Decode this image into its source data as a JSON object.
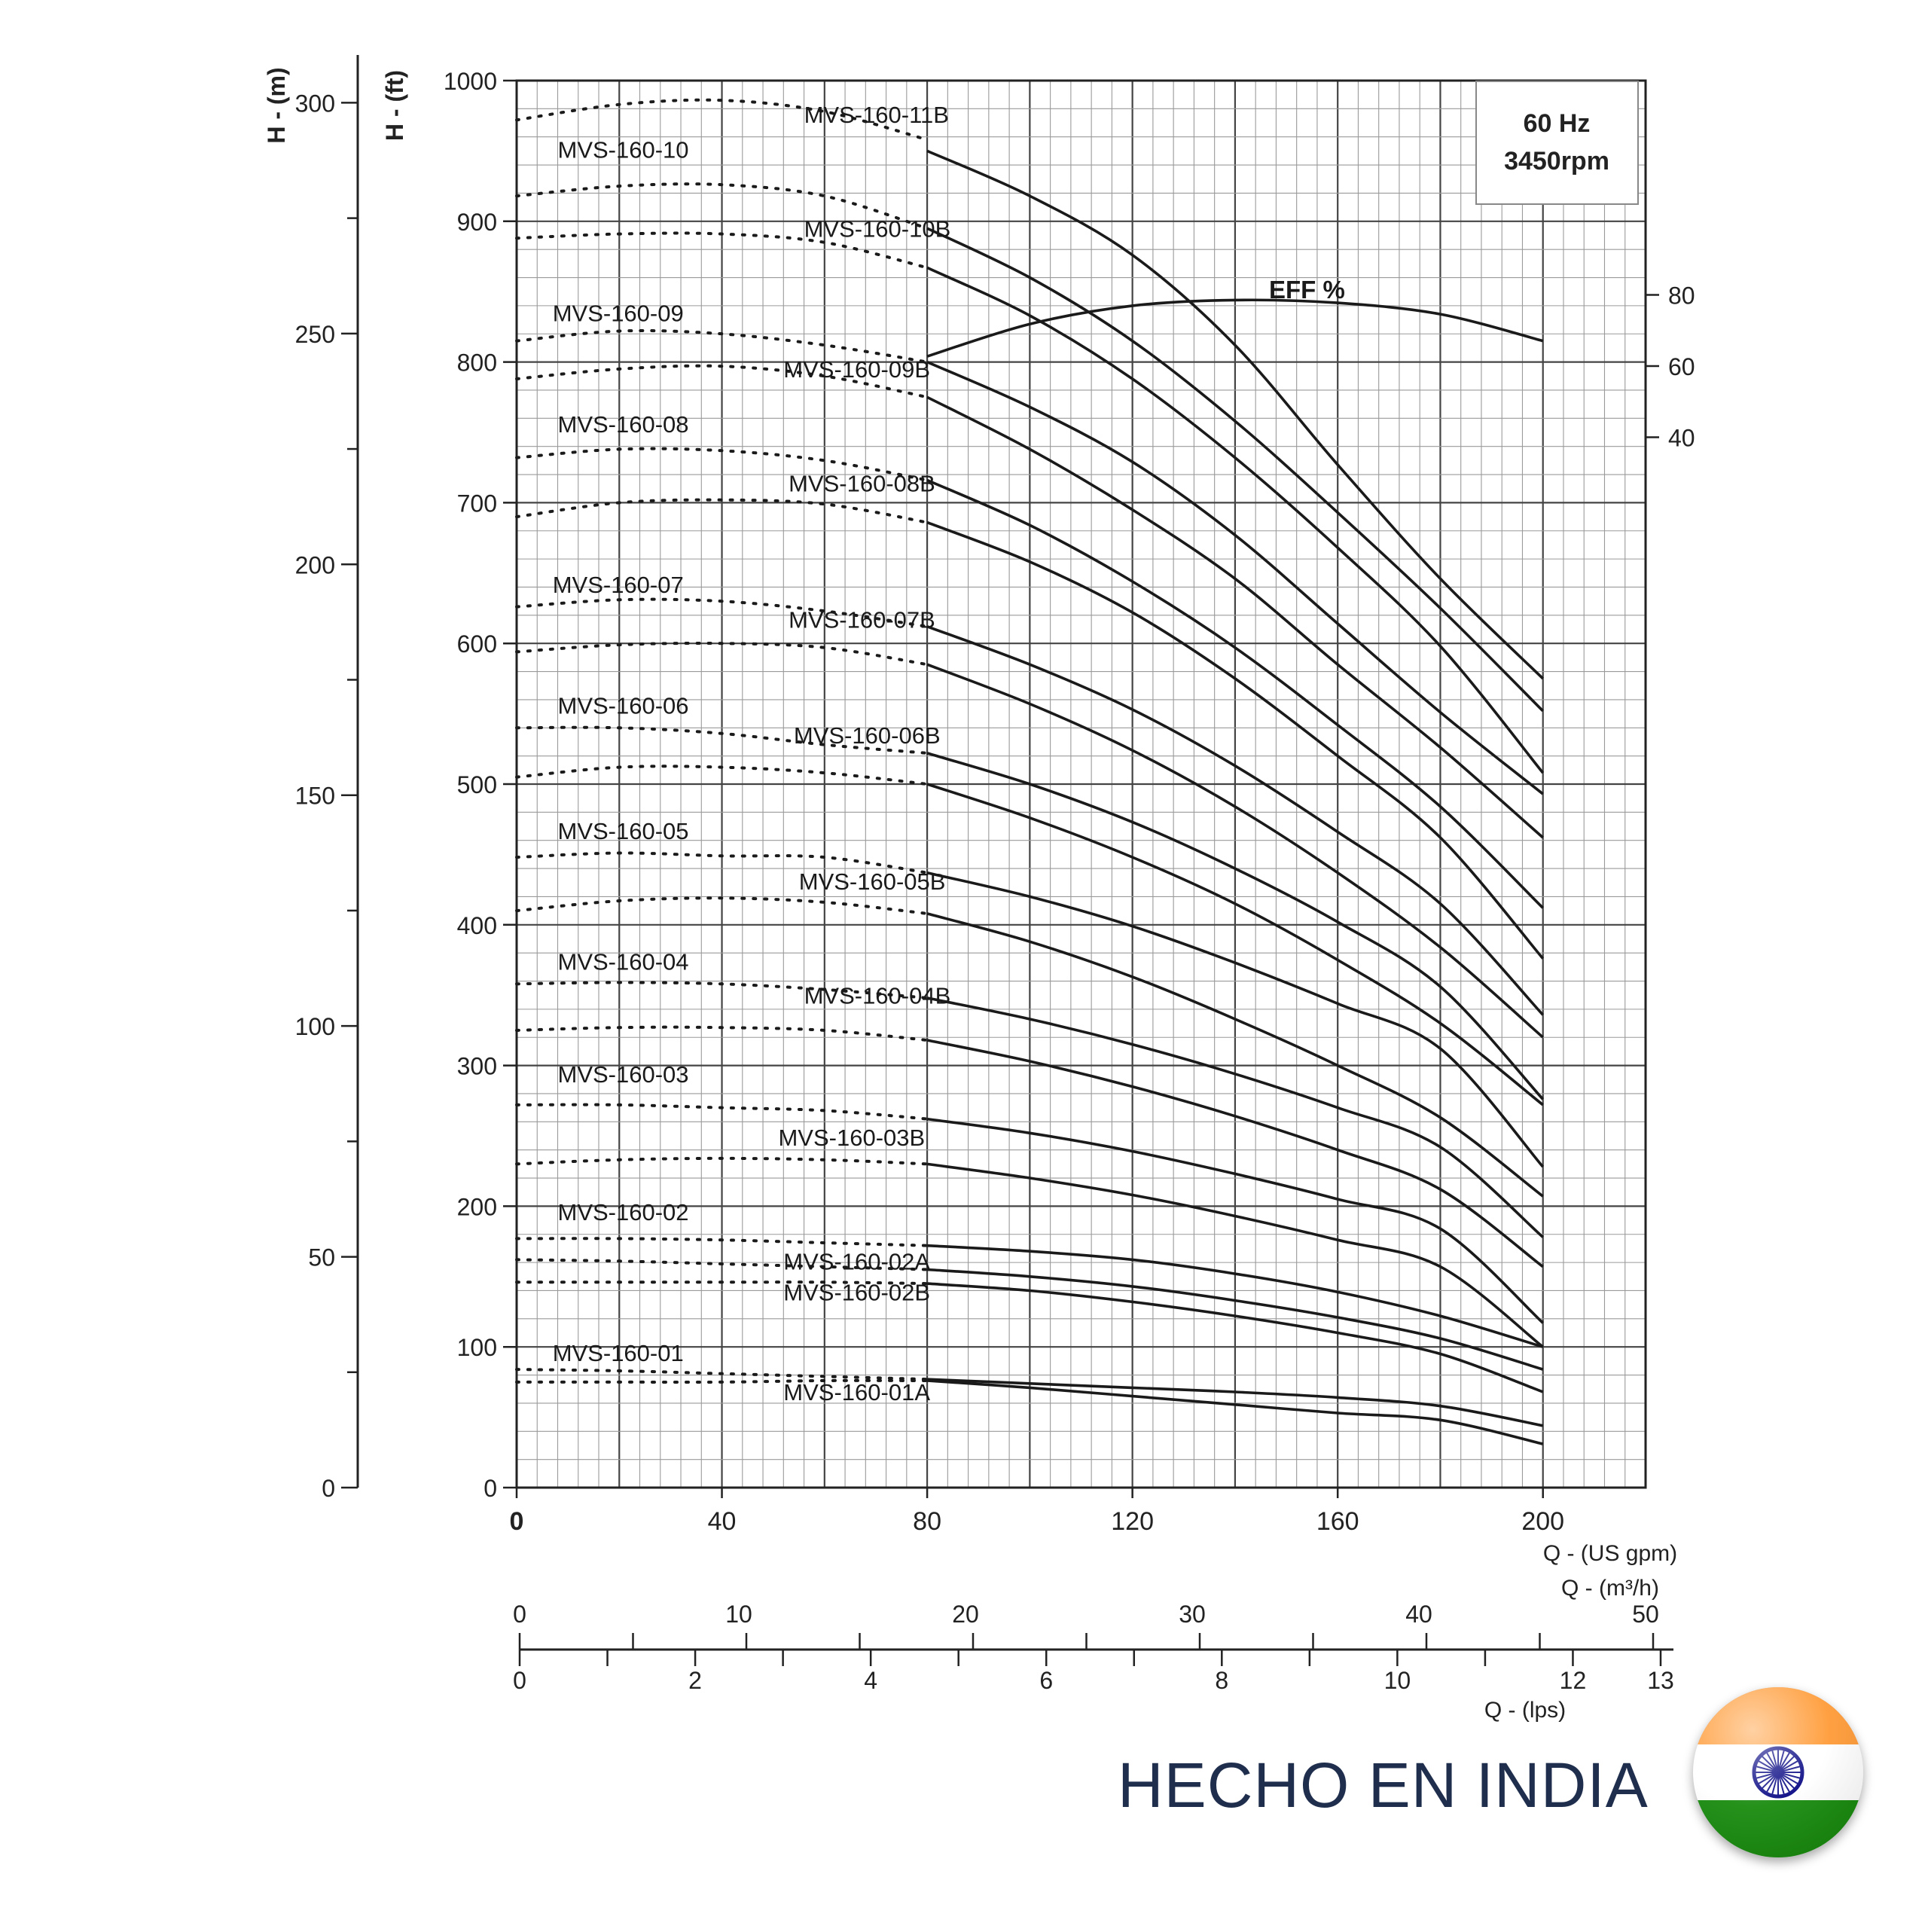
{
  "chart_data": {
    "type": "line",
    "info_box": {
      "line1": "60 Hz",
      "line2": "3450rpm"
    },
    "axes": {
      "x_gpm": {
        "label": "Q - (US gpm)",
        "range": [
          0,
          220
        ],
        "ticks": [
          0,
          40,
          80,
          120,
          160,
          200
        ]
      },
      "x_m3h": {
        "label": "Q - (m³/h)",
        "range": [
          0,
          50
        ],
        "ticks": [
          0,
          10,
          20,
          30,
          40,
          50
        ]
      },
      "x_lps": {
        "label": "Q - (lps)",
        "range": [
          0,
          13
        ],
        "ticks": [
          0,
          2,
          4,
          6,
          8,
          10,
          12,
          13
        ]
      },
      "y_ft": {
        "label": "H - (ft)",
        "range": [
          0,
          1000
        ],
        "ticks": [
          0,
          100,
          200,
          300,
          400,
          500,
          600,
          700,
          800,
          900,
          1000
        ]
      },
      "y_m": {
        "label": "H - (m)",
        "range": [
          0,
          300
        ],
        "ticks": [
          0,
          50,
          100,
          150,
          200,
          250,
          300
        ]
      },
      "eff": {
        "label": "EFF %",
        "ticks": [
          40,
          60,
          80
        ]
      }
    },
    "eff_curve": {
      "name": "EFF %",
      "x": [
        80,
        100,
        120,
        140,
        160,
        180,
        200
      ],
      "y": [
        804,
        827,
        840,
        844,
        842,
        834,
        815
      ]
    },
    "series": [
      {
        "name": "MVS-160-11B",
        "label": "MVS-160-11B",
        "label_pos": [
          56,
          970
        ],
        "dashed": {
          "x": [
            0,
            20,
            40,
            60,
            80
          ],
          "y": [
            972,
            983,
            986,
            978,
            958
          ]
        },
        "solid": {
          "x": [
            80,
            100,
            120,
            140,
            160,
            180,
            200
          ],
          "y": [
            950,
            918,
            876,
            812,
            727,
            646,
            575
          ]
        }
      },
      {
        "name": "MVS-160-10",
        "label": "MVS-160-10",
        "label_pos": [
          8,
          945
        ],
        "dashed": {
          "x": [
            0,
            20,
            40,
            60,
            80
          ],
          "y": [
            918,
            925,
            926,
            918,
            895
          ]
        },
        "solid": {
          "x": [
            80,
            100,
            120,
            140,
            160,
            180,
            200
          ],
          "y": [
            895,
            860,
            815,
            758,
            693,
            625,
            552
          ]
        }
      },
      {
        "name": "MVS-160-10B",
        "label": "MVS-160-10B",
        "label_pos": [
          56,
          889
        ],
        "dashed": {
          "x": [
            0,
            20,
            40,
            60,
            80
          ],
          "y": [
            888,
            891,
            891,
            885,
            867
          ]
        },
        "solid": {
          "x": [
            80,
            100,
            120,
            140,
            160,
            180,
            200
          ],
          "y": [
            867,
            833,
            788,
            732,
            668,
            598,
            508
          ]
        }
      },
      {
        "name": "MVS-160-09",
        "label": "MVS-160-09",
        "label_pos": [
          7,
          829
        ],
        "dashed": {
          "x": [
            0,
            20,
            40,
            60,
            80
          ],
          "y": [
            815,
            822,
            820,
            812,
            800
          ]
        },
        "solid": {
          "x": [
            80,
            100,
            120,
            140,
            160,
            180,
            200
          ],
          "y": [
            800,
            768,
            729,
            677,
            614,
            551,
            493
          ]
        }
      },
      {
        "name": "MVS-160-09B",
        "label": "MVS-160-09B",
        "label_pos": [
          52,
          789
        ],
        "dashed": {
          "x": [
            0,
            20,
            40,
            60,
            80
          ],
          "y": [
            788,
            795,
            797,
            790,
            775
          ]
        },
        "solid": {
          "x": [
            80,
            100,
            120,
            140,
            160,
            180,
            200
          ],
          "y": [
            775,
            738,
            695,
            646,
            585,
            526,
            462
          ]
        }
      },
      {
        "name": "MVS-160-08",
        "label": "MVS-160-08",
        "label_pos": [
          8,
          750
        ],
        "dashed": {
          "x": [
            0,
            20,
            40,
            60,
            80
          ],
          "y": [
            732,
            738,
            737,
            730,
            716
          ]
        },
        "solid": {
          "x": [
            80,
            100,
            120,
            140,
            160,
            180,
            200
          ],
          "y": [
            716,
            684,
            644,
            597,
            542,
            484,
            412
          ]
        }
      },
      {
        "name": "MVS-160-08B",
        "label": "MVS-160-08B",
        "label_pos": [
          53,
          708
        ],
        "dashed": {
          "x": [
            0,
            20,
            40,
            60,
            80
          ],
          "y": [
            690,
            700,
            702,
            699,
            686
          ]
        },
        "solid": {
          "x": [
            80,
            100,
            120,
            140,
            160,
            180,
            200
          ],
          "y": [
            686,
            658,
            622,
            575,
            520,
            462,
            376
          ]
        }
      },
      {
        "name": "MVS-160-07",
        "label": "MVS-160-07",
        "label_pos": [
          7,
          636
        ],
        "dashed": {
          "x": [
            0,
            20,
            40,
            60,
            80
          ],
          "y": [
            626,
            631,
            630,
            623,
            612
          ]
        },
        "solid": {
          "x": [
            80,
            100,
            120,
            140,
            160,
            180,
            200
          ],
          "y": [
            612,
            585,
            553,
            513,
            466,
            415,
            336
          ]
        }
      },
      {
        "name": "MVS-160-07B",
        "label": "MVS-160-07B",
        "label_pos": [
          53,
          611
        ],
        "dashed": {
          "x": [
            0,
            20,
            40,
            60,
            80
          ],
          "y": [
            594,
            599,
            600,
            597,
            585
          ]
        },
        "solid": {
          "x": [
            80,
            100,
            120,
            140,
            160,
            180,
            200
          ],
          "y": [
            585,
            557,
            524,
            484,
            437,
            384,
            320
          ]
        }
      },
      {
        "name": "MVS-160-06",
        "label": "MVS-160-06",
        "label_pos": [
          8,
          550
        ],
        "dashed": {
          "x": [
            0,
            20,
            40,
            60,
            80
          ],
          "y": [
            540,
            540,
            536,
            528,
            522
          ]
        },
        "solid": {
          "x": [
            80,
            100,
            120,
            140,
            160,
            180,
            200
          ],
          "y": [
            522,
            500,
            473,
            440,
            402,
            356,
            276
          ]
        }
      },
      {
        "name": "MVS-160-06B",
        "label": "MVS-160-06B",
        "label_pos": [
          54,
          529
        ],
        "dashed": {
          "x": [
            0,
            20,
            40,
            60,
            80
          ],
          "y": [
            505,
            512,
            512,
            508,
            500
          ]
        },
        "solid": {
          "x": [
            80,
            100,
            120,
            140,
            160,
            180,
            200
          ],
          "y": [
            500,
            476,
            448,
            415,
            375,
            330,
            272
          ]
        }
      },
      {
        "name": "MVS-160-05",
        "label": "MVS-160-05",
        "label_pos": [
          8,
          461
        ],
        "dashed": {
          "x": [
            0,
            20,
            40,
            60,
            80
          ],
          "y": [
            448,
            451,
            449,
            448,
            437
          ]
        },
        "solid": {
          "x": [
            80,
            100,
            120,
            140,
            160,
            180,
            200
          ],
          "y": [
            437,
            420,
            399,
            373,
            344,
            312,
            228
          ]
        }
      },
      {
        "name": "MVS-160-05B",
        "label": "MVS-160-05B",
        "label_pos": [
          55,
          425
        ],
        "dashed": {
          "x": [
            0,
            20,
            40,
            60,
            80
          ],
          "y": [
            410,
            417,
            419,
            416,
            408
          ]
        },
        "solid": {
          "x": [
            80,
            100,
            120,
            140,
            160,
            180,
            200
          ],
          "y": [
            408,
            388,
            363,
            333,
            300,
            263,
            207
          ]
        }
      },
      {
        "name": "MVS-160-04",
        "label": "MVS-160-04",
        "label_pos": [
          8,
          368
        ],
        "dashed": {
          "x": [
            0,
            20,
            40,
            60,
            80
          ],
          "y": [
            358,
            359,
            358,
            354,
            348
          ]
        },
        "solid": {
          "x": [
            80,
            100,
            120,
            140,
            160,
            180,
            200
          ],
          "y": [
            348,
            333,
            315,
            294,
            270,
            242,
            178
          ]
        }
      },
      {
        "name": "MVS-160-04B",
        "label": "MVS-160-04B",
        "label_pos": [
          56,
          344
        ],
        "dashed": {
          "x": [
            0,
            20,
            40,
            60,
            80
          ],
          "y": [
            325,
            327,
            327,
            325,
            318
          ]
        },
        "solid": {
          "x": [
            80,
            100,
            120,
            140,
            160,
            180,
            200
          ],
          "y": [
            318,
            303,
            285,
            264,
            240,
            212,
            157
          ]
        }
      },
      {
        "name": "MVS-160-03",
        "label": "MVS-160-03",
        "label_pos": [
          8,
          288
        ],
        "dashed": {
          "x": [
            0,
            20,
            40,
            60,
            80
          ],
          "y": [
            272,
            272,
            270,
            268,
            262
          ]
        },
        "solid": {
          "x": [
            80,
            100,
            120,
            140,
            160,
            180,
            200
          ],
          "y": [
            262,
            252,
            239,
            223,
            205,
            184,
            117
          ]
        }
      },
      {
        "name": "MVS-160-03B",
        "label": "MVS-160-03B",
        "label_pos": [
          51,
          243
        ],
        "dashed": {
          "x": [
            0,
            20,
            40,
            60,
            80
          ],
          "y": [
            230,
            233,
            234,
            233,
            230
          ]
        },
        "solid": {
          "x": [
            80,
            100,
            120,
            140,
            160,
            180,
            200
          ],
          "y": [
            230,
            220,
            208,
            193,
            176,
            157,
            100
          ]
        }
      },
      {
        "name": "MVS-160-02",
        "label": "MVS-160-02",
        "label_pos": [
          8,
          190
        ],
        "dashed": {
          "x": [
            0,
            20,
            40,
            60,
            80
          ],
          "y": [
            177,
            177,
            176,
            174,
            172
          ]
        },
        "solid": {
          "x": [
            80,
            100,
            120,
            140,
            160,
            180,
            200
          ],
          "y": [
            172,
            168,
            162,
            152,
            139,
            122,
            100
          ]
        }
      },
      {
        "name": "MVS-160-02A",
        "label": "MVS-160-02A",
        "label_pos": [
          52,
          155
        ],
        "dashed": {
          "x": [
            0,
            20,
            40,
            60,
            80
          ],
          "y": [
            162,
            161,
            159,
            157,
            155
          ]
        },
        "solid": {
          "x": [
            80,
            100,
            120,
            140,
            160,
            180,
            200
          ],
          "y": [
            155,
            150,
            143,
            133,
            121,
            106,
            84
          ]
        }
      },
      {
        "name": "MVS-160-02B",
        "label": "MVS-160-02B",
        "label_pos": [
          52,
          133
        ],
        "dashed": {
          "x": [
            0,
            20,
            40,
            60,
            80
          ],
          "y": [
            146,
            146,
            146,
            146,
            145
          ]
        },
        "solid": {
          "x": [
            80,
            100,
            120,
            140,
            160,
            180,
            200
          ],
          "y": [
            145,
            140,
            132,
            122,
            110,
            95,
            68
          ]
        }
      },
      {
        "name": "MVS-160-01",
        "label": "MVS-160-01",
        "label_pos": [
          7,
          90
        ],
        "dashed": {
          "x": [
            0,
            20,
            40,
            60,
            80
          ],
          "y": [
            84,
            83,
            81,
            79,
            77
          ]
        },
        "solid": {
          "x": [
            80,
            100,
            120,
            140,
            160,
            180,
            200
          ],
          "y": [
            77,
            74,
            71,
            68,
            64,
            58,
            44
          ]
        }
      },
      {
        "name": "MVS-160-01A",
        "label": "MVS-160-01A",
        "label_pos": [
          52,
          62
        ],
        "dashed": {
          "x": [
            0,
            20,
            40,
            60,
            80
          ],
          "y": [
            75,
            75,
            75,
            76,
            76
          ]
        },
        "solid": {
          "x": [
            80,
            100,
            120,
            140,
            160,
            180,
            200
          ],
          "y": [
            76,
            71,
            65,
            59,
            53,
            48,
            31
          ]
        }
      }
    ]
  },
  "footer": {
    "made_in": "HECHO EN INDIA"
  },
  "colors": {
    "grid": "#9a9a9a",
    "curve": "#1a1a1a",
    "text": "#222222",
    "footer_text": "#1f2e4d",
    "saffron": "#ff9933",
    "white": "#ffffff",
    "green": "#138808",
    "chakra": "#000080"
  }
}
